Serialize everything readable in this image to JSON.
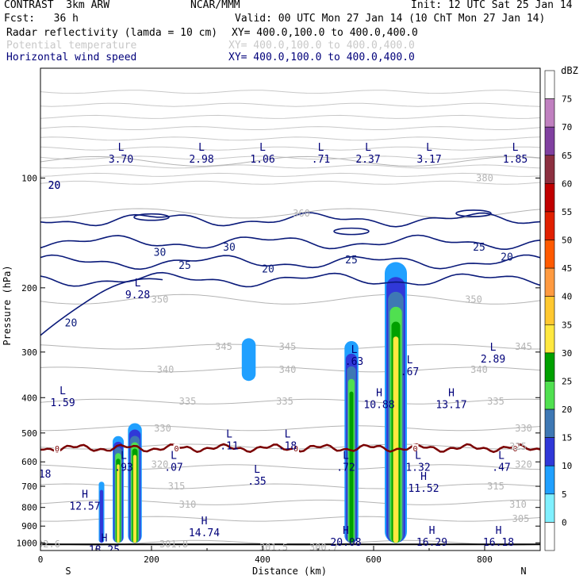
{
  "header": {
    "model": "CONTRAST  3km ARW",
    "center": "NCAR/MMM",
    "init": "Init: 12 UTC Sat 25 Jan 14",
    "fcst": "Fcst:   36 h",
    "valid": "Valid: 00 UTC Mon 27 Jan 14 (10 ChT Mon 27 Jan 14)",
    "fields": [
      {
        "name": "Radar reflectivity (lamda = 10 cm)",
        "xy": "XY= 400.0,100.0 to 400.0,400.0",
        "color": "#000000"
      },
      {
        "name": "Potential temperature",
        "xy": "XY= 400.0,100.0 to 400.0,400.0",
        "color": "#c8c8c8"
      },
      {
        "name": "Horizontal wind speed",
        "xy": "XY= 400.0,100.0 to 400.0,400.0",
        "color": "#00007a"
      }
    ]
  },
  "colors": {
    "theta": "#b4b4b4",
    "wind": "#0a1a7a",
    "zero_line": "#7a0000",
    "hl_label": "#00007a",
    "axis": "#000000"
  },
  "chart_data": {
    "type": "heatmap",
    "xlabel": "Distance (km)",
    "ylabel": "Pressure (hPa)",
    "xlim": [
      0,
      900
    ],
    "ylim": [
      1050,
      50
    ],
    "y_scale": "log",
    "x_ticks": [
      "0",
      "200",
      "400",
      "600",
      "800"
    ],
    "x_end_labels": [
      "S",
      "N"
    ],
    "y_ticks": [
      "100",
      "200",
      "300",
      "400",
      "500",
      "600",
      "700",
      "800",
      "900",
      "1000"
    ],
    "colorbar": {
      "unit": "dBZ",
      "labels": [
        "75",
        "70",
        "65",
        "60",
        "55",
        "50",
        "45",
        "40",
        "35",
        "30",
        "25",
        "20",
        "15",
        "10",
        "5",
        "0"
      ],
      "colors": [
        "#ffffff",
        "#c080c0",
        "#8040a0",
        "#8c3040",
        "#c00000",
        "#e02000",
        "#ff5a00",
        "#ff9a40",
        "#ffc830",
        "#ffe840",
        "#00a000",
        "#50e050",
        "#3e78b4",
        "#3038d8",
        "#20a0ff",
        "#80f0ff",
        "#ffffff"
      ]
    },
    "reflectivity_cells": [
      {
        "x": 110,
        "p_top": 680,
        "p_bot": 1000,
        "width": 10,
        "max_dbz": 10
      },
      {
        "x": 140,
        "p_top": 510,
        "p_bot": 1000,
        "width": 20,
        "max_dbz": 30
      },
      {
        "x": 170,
        "p_top": 470,
        "p_bot": 1000,
        "width": 25,
        "max_dbz": 30
      },
      {
        "x": 375,
        "p_top": 275,
        "p_bot": 360,
        "width": 25,
        "max_dbz": 5
      },
      {
        "x": 560,
        "p_top": 280,
        "p_bot": 1000,
        "width": 25,
        "max_dbz": 25
      },
      {
        "x": 640,
        "p_top": 170,
        "p_bot": 1000,
        "width": 40,
        "max_dbz": 30
      }
    ],
    "theta_contours": [
      {
        "value": 300,
        "p": 1000
      },
      {
        "value": 305,
        "p": 860
      },
      {
        "value": 310,
        "p": 775
      },
      {
        "value": 315,
        "p": 700
      },
      {
        "value": 320,
        "p": 620
      },
      {
        "value": 325,
        "p": 545
      },
      {
        "value": 330,
        "p": 485
      },
      {
        "value": 335,
        "p": 410
      },
      {
        "value": 340,
        "p": 335
      },
      {
        "value": 345,
        "p": 290
      },
      {
        "value": 350,
        "p": 215
      },
      {
        "value": 360,
        "p": 125
      },
      {
        "value": 380,
        "p": 90
      }
    ],
    "theta_labels": [
      {
        "text": "305",
        "x": 865,
        "p": 860
      },
      {
        "text": "310",
        "x": 265,
        "p": 785
      },
      {
        "text": "310",
        "x": 860,
        "p": 785
      },
      {
        "text": "315",
        "x": 245,
        "p": 700
      },
      {
        "text": "315",
        "x": 820,
        "p": 700
      },
      {
        "text": "320",
        "x": 215,
        "p": 610
      },
      {
        "text": "320",
        "x": 870,
        "p": 610
      },
      {
        "text": "325",
        "x": 860,
        "p": 545
      },
      {
        "text": "330",
        "x": 220,
        "p": 485
      },
      {
        "text": "330",
        "x": 870,
        "p": 485
      },
      {
        "text": "335",
        "x": 265,
        "p": 410
      },
      {
        "text": "335",
        "x": 440,
        "p": 410
      },
      {
        "text": "335",
        "x": 820,
        "p": 410
      },
      {
        "text": "340",
        "x": 225,
        "p": 335
      },
      {
        "text": "340",
        "x": 445,
        "p": 335
      },
      {
        "text": "340",
        "x": 790,
        "p": 335
      },
      {
        "text": "345",
        "x": 330,
        "p": 290
      },
      {
        "text": "345",
        "x": 445,
        "p": 290
      },
      {
        "text": "345",
        "x": 870,
        "p": 290
      },
      {
        "text": "350",
        "x": 215,
        "p": 215
      },
      {
        "text": "350",
        "x": 780,
        "p": 215
      },
      {
        "text": "360",
        "x": 470,
        "p": 125
      },
      {
        "text": "380",
        "x": 800,
        "p": 100
      },
      {
        "text": "301.8",
        "x": 240,
        "p": 1010
      },
      {
        "text": "301.5",
        "x": 420,
        "p": 1030
      },
      {
        "text": "300.7",
        "x": 510,
        "p": 1030
      },
      {
        "text": "02.6",
        "x": 15,
        "p": 1010
      }
    ],
    "zero_line_p": 550,
    "zero_labels": [
      {
        "text": "0",
        "x": 30
      },
      {
        "text": "0",
        "x": 245
      },
      {
        "text": "0",
        "x": 460
      },
      {
        "text": "0",
        "x": 675
      },
      {
        "text": "0",
        "x": 855
      }
    ],
    "wind_contour_labels": [
      {
        "text": "20",
        "x": 25,
        "p": 105
      },
      {
        "text": "30",
        "x": 215,
        "p": 160
      },
      {
        "text": "25",
        "x": 260,
        "p": 174
      },
      {
        "text": "30",
        "x": 340,
        "p": 155
      },
      {
        "text": "20",
        "x": 410,
        "p": 178
      },
      {
        "text": "25",
        "x": 560,
        "p": 168
      },
      {
        "text": "25",
        "x": 790,
        "p": 155
      },
      {
        "text": "20",
        "x": 840,
        "p": 165
      },
      {
        "text": "20",
        "x": 55,
        "p": 250
      }
    ],
    "extrema": [
      {
        "type": "L",
        "value": "3.70",
        "x": 145,
        "p": 85
      },
      {
        "type": "L",
        "value": "2.98",
        "x": 290,
        "p": 85
      },
      {
        "type": "L",
        "value": "1.06",
        "x": 400,
        "p": 85
      },
      {
        "type": "L",
        "value": ".71",
        "x": 505,
        "p": 85
      },
      {
        "type": "L",
        "value": "2.37",
        "x": 590,
        "p": 85
      },
      {
        "type": "L",
        "value": "3.17",
        "x": 700,
        "p": 85
      },
      {
        "type": "L",
        "value": "1.85",
        "x": 855,
        "p": 85
      },
      {
        "type": "L",
        "value": "9.28",
        "x": 175,
        "p": 200
      },
      {
        "type": "L",
        "value": ".63",
        "x": 565,
        "p": 305
      },
      {
        "type": "L",
        "value": ".67",
        "x": 665,
        "p": 325
      },
      {
        "type": "L",
        "value": "2.89",
        "x": 815,
        "p": 300
      },
      {
        "type": "L",
        "value": "1.59",
        "x": 40,
        "p": 395
      },
      {
        "type": "H",
        "value": "10.88",
        "x": 610,
        "p": 400
      },
      {
        "type": "H",
        "value": "13.17",
        "x": 740,
        "p": 400
      },
      {
        "type": "L",
        "value": ".11",
        "x": 340,
        "p": 520
      },
      {
        "type": "L",
        "value": ".18",
        "x": 445,
        "p": 520
      },
      {
        "type": "L",
        "value": ".93",
        "x": 150,
        "p": 595
      },
      {
        "type": "L",
        "value": ".07",
        "x": 240,
        "p": 595
      },
      {
        "type": "L",
        "value": ".72",
        "x": 550,
        "p": 595
      },
      {
        "type": "L",
        "value": "1.32",
        "x": 680,
        "p": 595
      },
      {
        "type": "L",
        "value": ".47",
        "x": 830,
        "p": 595
      },
      {
        "type": "L",
        "value": ".35",
        "x": 390,
        "p": 650
      },
      {
        "type": "H",
        "value": "11.52",
        "x": 690,
        "p": 680
      },
      {
        "type": "H",
        "value": "12.57",
        "x": 80,
        "p": 760
      },
      {
        "type": "H",
        "value": "14.74",
        "x": 295,
        "p": 900
      },
      {
        "type": "H",
        "value": "20.08",
        "x": 550,
        "p": 955
      },
      {
        "type": "H",
        "value": "16.29",
        "x": 705,
        "p": 955
      },
      {
        "type": "H",
        "value": "16.18",
        "x": 825,
        "p": 955
      },
      {
        "type": "H",
        "value": "18.25",
        "x": 115,
        "p": 1000
      }
    ],
    "edge_labels": [
      {
        "text": "18",
        "x": 8,
        "p": 650
      },
      {
        "text": "20",
        "x": 25,
        "p": 105
      }
    ]
  }
}
